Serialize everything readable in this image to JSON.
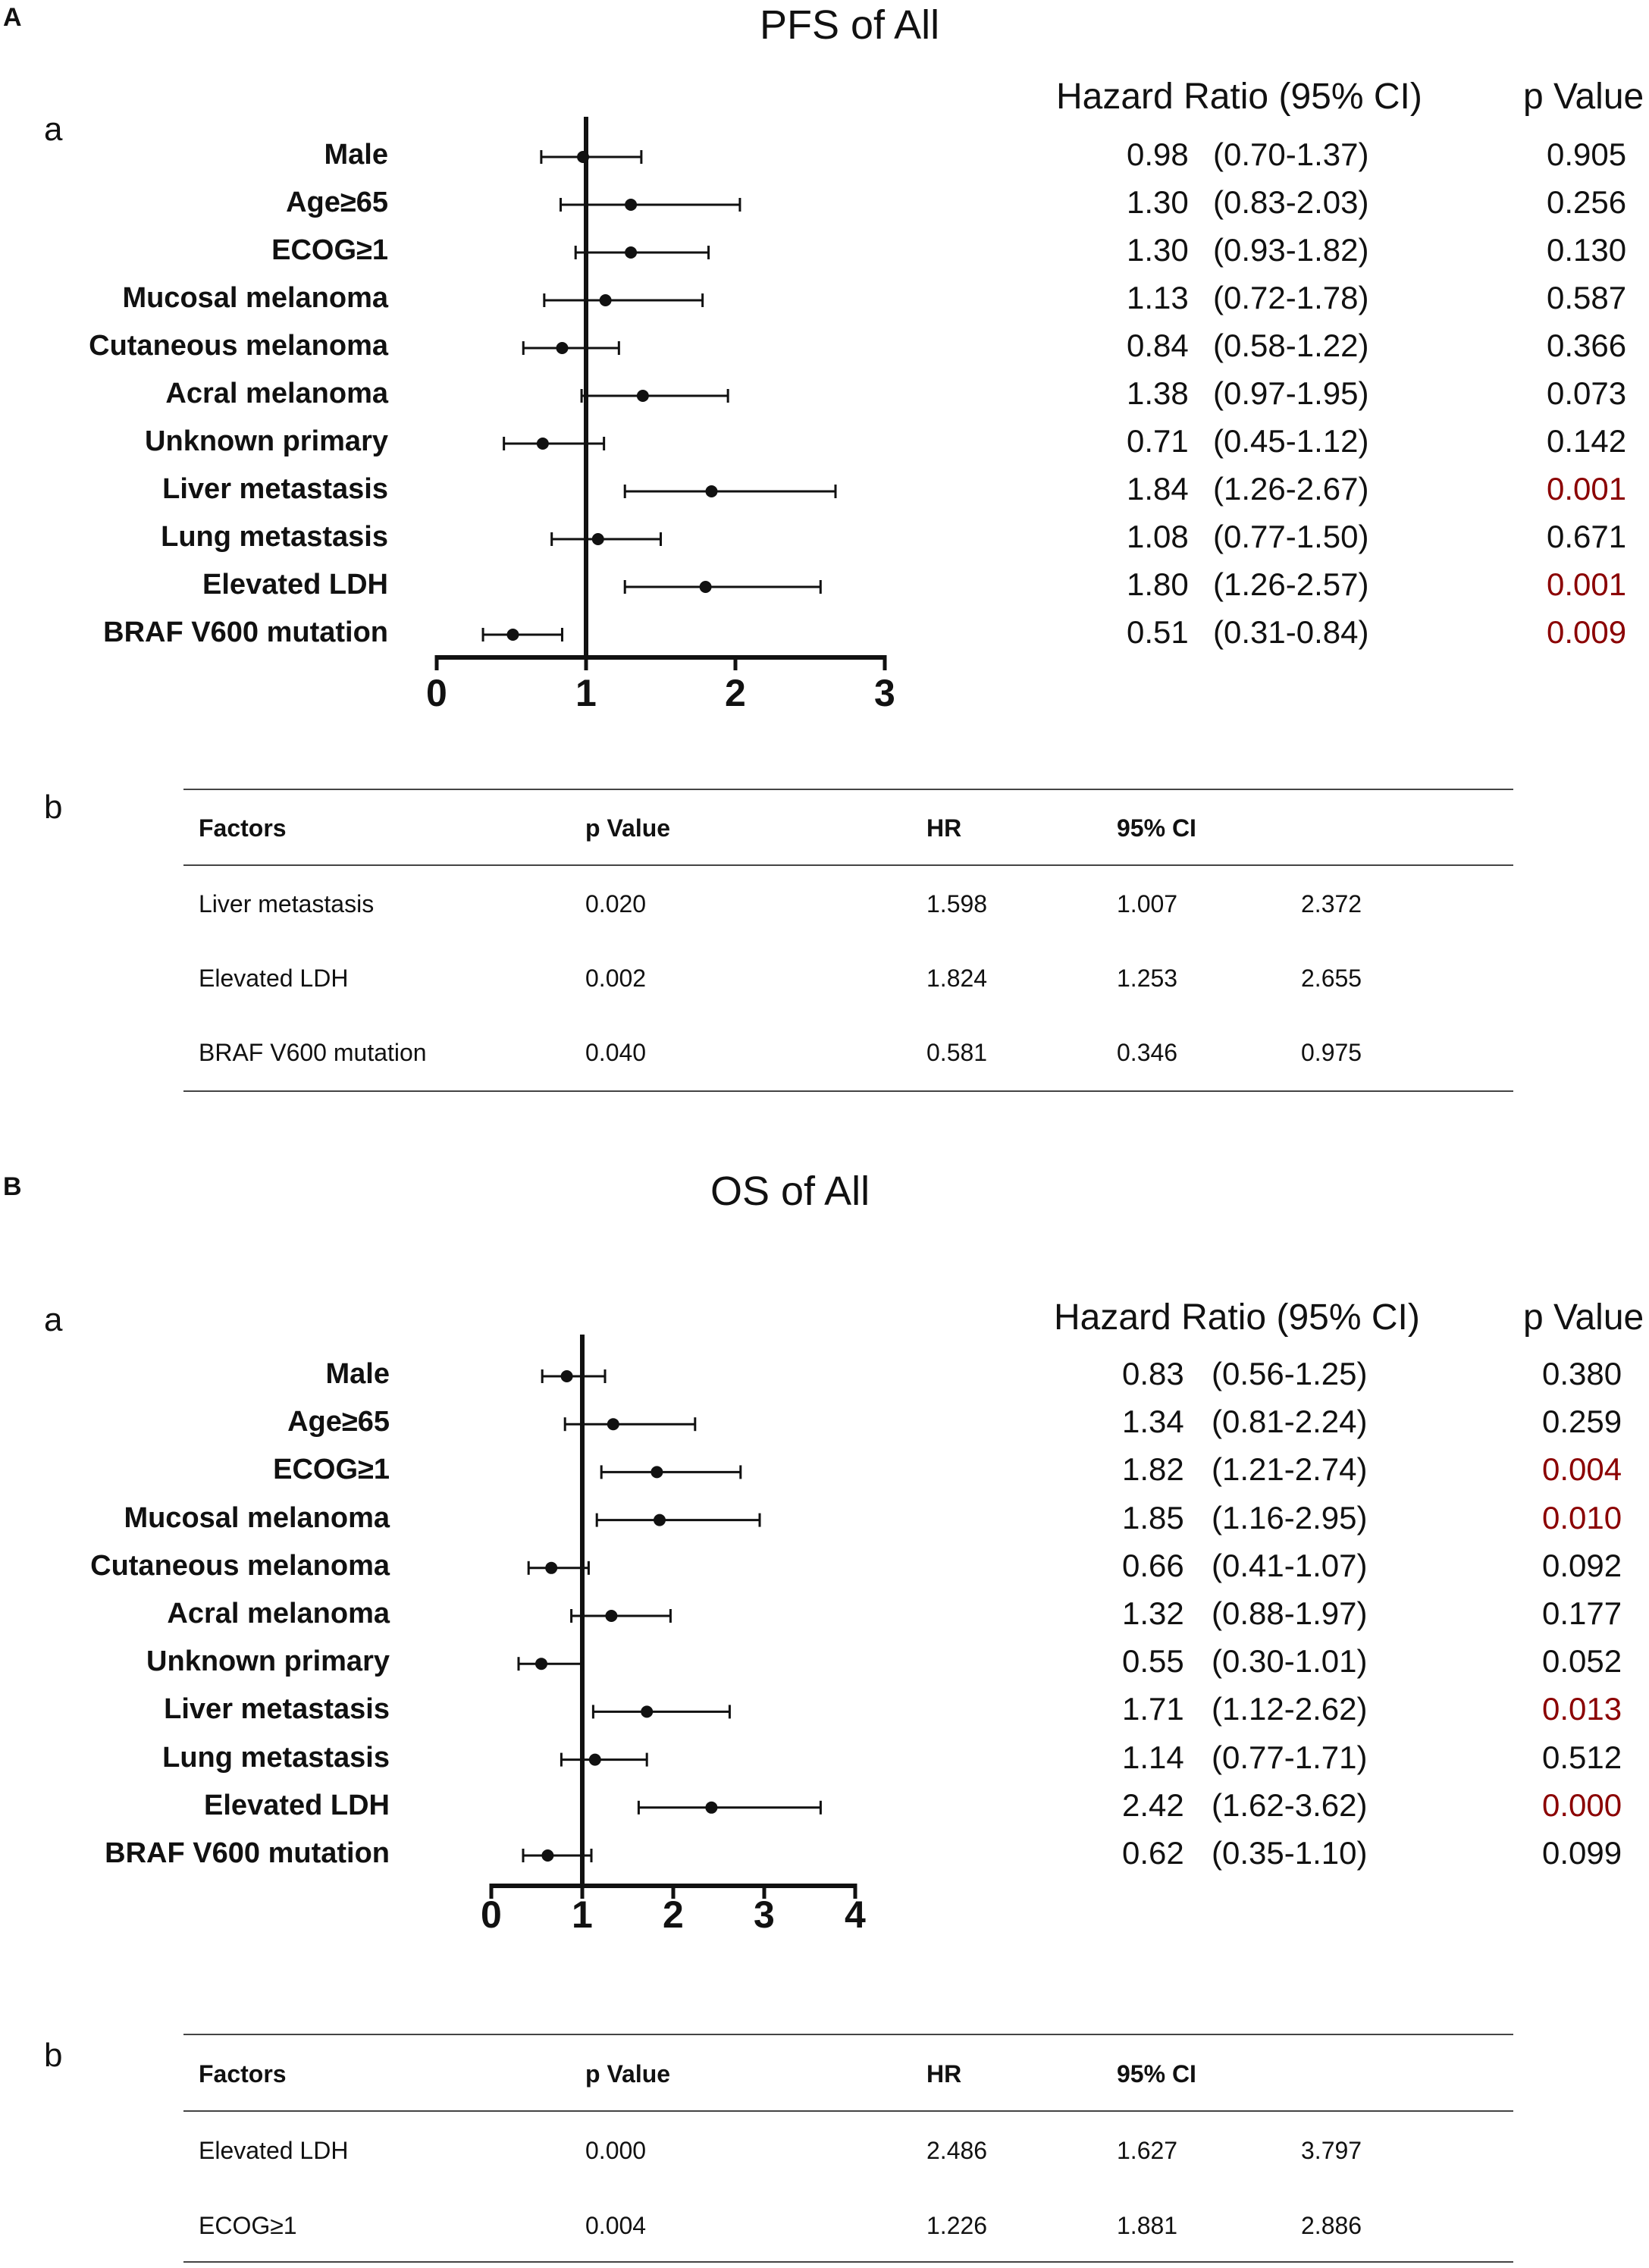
{
  "sig_color": "#8b0000",
  "text_color": "#111111",
  "charts": [
    {
      "panel_label": "A",
      "title": "PFS of All",
      "sub_forest": "a",
      "sub_table": "b",
      "col_hr": "Hazard Ratio (95% CI)",
      "col_p": "p Value",
      "ticks": [
        "0",
        "1",
        "2",
        "3"
      ],
      "table": {
        "headers": [
          "Factors",
          "p Value",
          "HR",
          "95% CI",
          ""
        ],
        "rows": [
          [
            "Liver metastasis",
            "0.020",
            "1.598",
            "1.007",
            "2.372"
          ],
          [
            "Elevated LDH",
            "0.002",
            "1.824",
            "1.253",
            "2.655"
          ],
          [
            "BRAF V600 mutation",
            "0.040",
            "0.581",
            "0.346",
            "0.975"
          ]
        ]
      }
    },
    {
      "panel_label": "B",
      "title": "OS of All",
      "sub_forest": "a",
      "sub_table": "b",
      "col_hr": "Hazard Ratio (95% CI)",
      "col_p": "p Value",
      "ticks": [
        "0",
        "1",
        "2",
        "3",
        "4"
      ],
      "table": {
        "headers": [
          "Factors",
          "p Value",
          "HR",
          "95% CI",
          ""
        ],
        "rows": [
          [
            "Elevated LDH",
            "0.000",
            "2.486",
            "1.627",
            "3.797"
          ],
          [
            "ECOG≥1",
            "0.004",
            "1.226",
            "1.881",
            "2.886"
          ]
        ]
      }
    }
  ],
  "chart_data": [
    {
      "type": "forest",
      "title": "PFS of All",
      "xlim": [
        0,
        3
      ],
      "reference_line": 1,
      "categories": [
        "Male",
        "Age≥65",
        "ECOG≥1",
        "Mucosal melanoma",
        "Cutaneous melanoma",
        "Acral melanoma",
        "Unknown primary",
        "Liver metastasis",
        "Lung metastasis",
        "Elevated LDH",
        "BRAF V600 mutation"
      ],
      "hr": [
        0.98,
        1.3,
        1.3,
        1.13,
        0.84,
        1.38,
        0.71,
        1.84,
        1.08,
        1.8,
        0.51
      ],
      "ci_low": [
        0.7,
        0.83,
        0.93,
        0.72,
        0.58,
        0.97,
        0.45,
        1.26,
        0.77,
        1.26,
        0.31
      ],
      "ci_high": [
        1.37,
        2.03,
        1.82,
        1.78,
        1.22,
        1.95,
        1.12,
        2.67,
        1.5,
        2.57,
        0.84
      ],
      "hr_text": [
        "0.98",
        "1.30",
        "1.30",
        "1.13",
        "0.84",
        "1.38",
        "0.71",
        "1.84",
        "1.08",
        "1.80",
        "0.51"
      ],
      "ci_text": [
        "(0.70-1.37)",
        "(0.83-2.03)",
        "(0.93-1.82)",
        "(0.72-1.78)",
        "(0.58-1.22)",
        "(0.97-1.95)",
        "(0.45-1.12)",
        "(1.26-2.67)",
        "(0.77-1.50)",
        "(1.26-2.57)",
        "(0.31-0.84)"
      ],
      "p_text": [
        "0.905",
        "0.256",
        "0.130",
        "0.587",
        "0.366",
        "0.073",
        "0.142",
        "0.001",
        "0.671",
        "0.001",
        "0.009"
      ],
      "significant": [
        false,
        false,
        false,
        false,
        false,
        false,
        false,
        true,
        false,
        true,
        true
      ]
    },
    {
      "type": "forest",
      "title": "OS of All",
      "xlim": [
        0,
        4
      ],
      "reference_line": 1,
      "categories": [
        "Male",
        "Age≥65",
        "ECOG≥1",
        "Mucosal melanoma",
        "Cutaneous melanoma",
        "Acral melanoma",
        "Unknown primary",
        "Liver metastasis",
        "Lung metastasis",
        "Elevated LDH",
        "BRAF V600 mutation"
      ],
      "hr": [
        0.83,
        1.34,
        1.82,
        1.85,
        0.66,
        1.32,
        0.55,
        1.71,
        1.14,
        2.42,
        0.62
      ],
      "ci_low": [
        0.56,
        0.81,
        1.21,
        1.16,
        0.41,
        0.88,
        0.3,
        1.12,
        0.77,
        1.62,
        0.35
      ],
      "ci_high": [
        1.25,
        2.24,
        2.74,
        2.95,
        1.07,
        1.97,
        1.01,
        2.62,
        1.71,
        3.62,
        1.1
      ],
      "hr_text": [
        "0.83",
        "1.34",
        "1.82",
        "1.85",
        "0.66",
        "1.32",
        "0.55",
        "1.71",
        "1.14",
        "2.42",
        "0.62"
      ],
      "ci_text": [
        "(0.56-1.25)",
        "(0.81-2.24)",
        "(1.21-2.74)",
        "(1.16-2.95)",
        "(0.41-1.07)",
        "(0.88-1.97)",
        "(0.30-1.01)",
        "(1.12-2.62)",
        "(0.77-1.71)",
        "(1.62-3.62)",
        "(0.35-1.10)"
      ],
      "p_text": [
        "0.380",
        "0.259",
        "0.004",
        "0.010",
        "0.092",
        "0.177",
        "0.052",
        "0.013",
        "0.512",
        "0.000",
        "0.099"
      ],
      "significant": [
        false,
        false,
        true,
        true,
        false,
        false,
        false,
        true,
        false,
        true,
        false
      ]
    }
  ]
}
